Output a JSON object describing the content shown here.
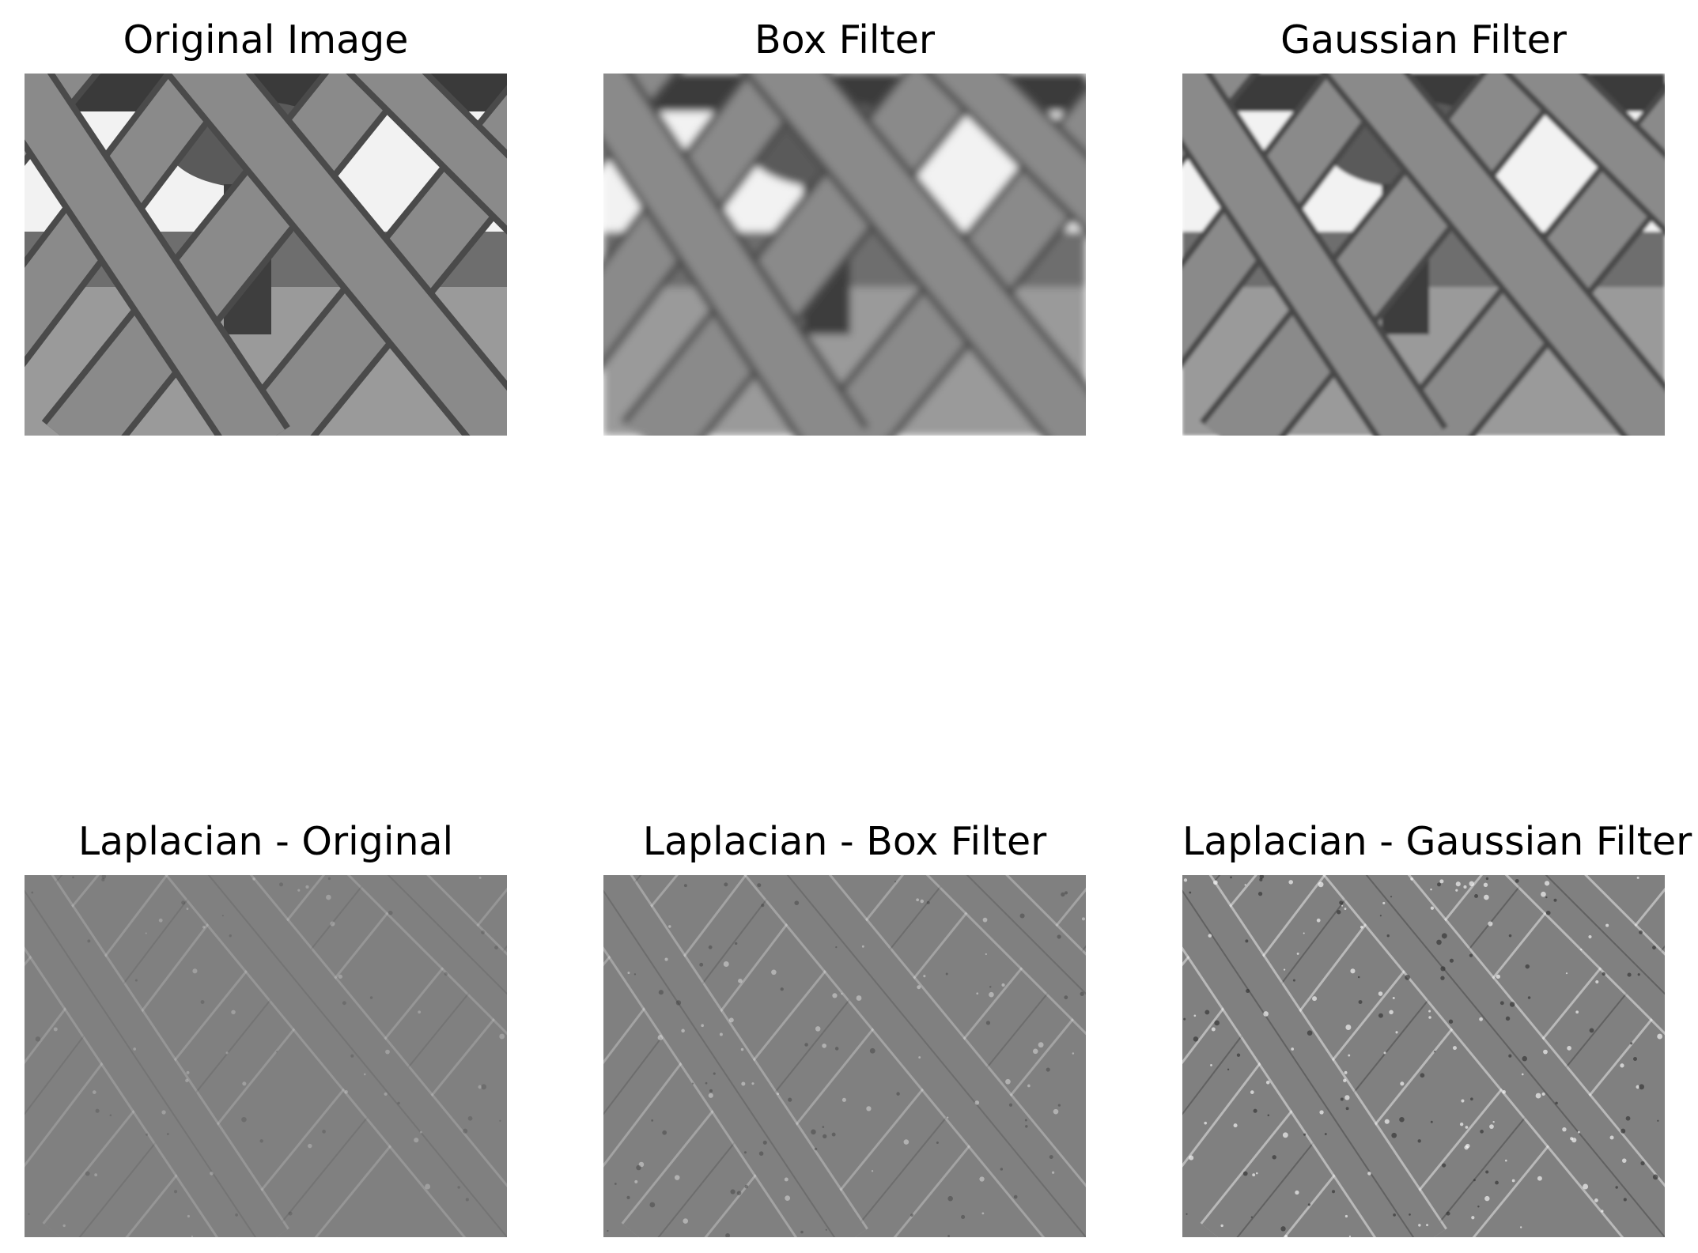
{
  "figure": {
    "panels": [
      {
        "title": "Original Image",
        "variant": "original"
      },
      {
        "title": "Box Filter",
        "variant": "box"
      },
      {
        "title": "Gaussian Filter",
        "variant": "gaussian"
      },
      {
        "title": "Laplacian - Original",
        "variant": "lap-original"
      },
      {
        "title": "Laplacian - Box Filter",
        "variant": "lap-box"
      },
      {
        "title": "Laplacian - Gaussian Filter",
        "variant": "lap-gaussian"
      }
    ]
  },
  "colors": {
    "background": "#ffffff",
    "log_light": "#8a8a8a",
    "log_dark": "#4a4a4a",
    "sky": "#f2f2f2",
    "ground": "#9a9a9a",
    "laplacian_gray": "#808080"
  }
}
